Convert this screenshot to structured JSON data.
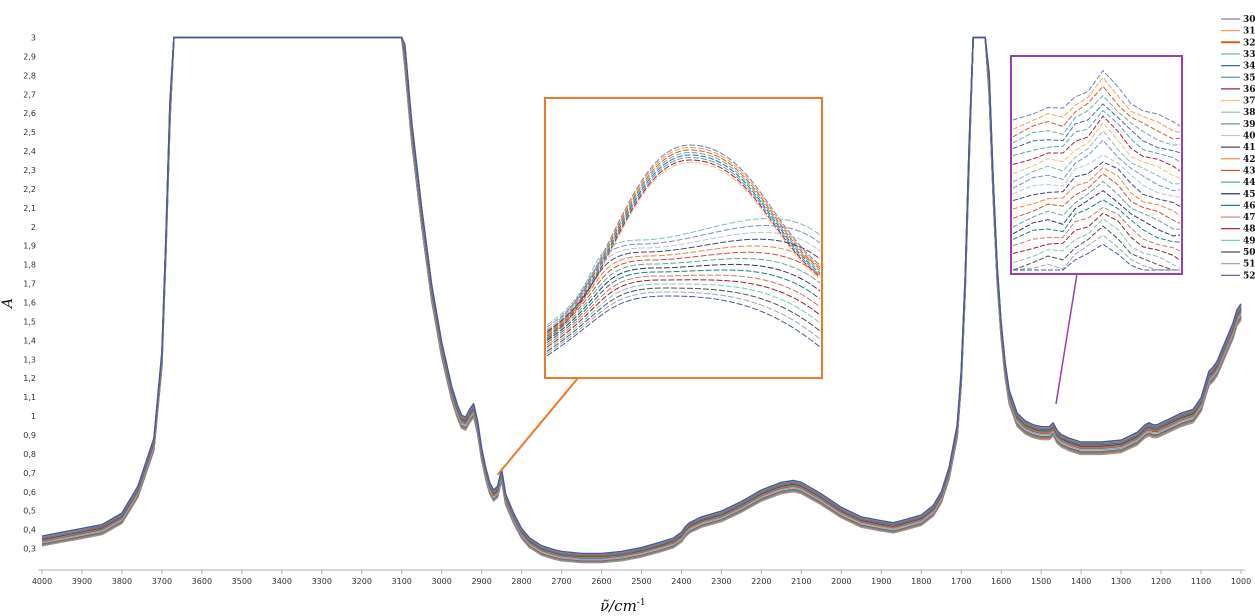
{
  "chart_data": {
    "type": "line",
    "xlabel": "ν̃/cm",
    "xlabel_sup": "-1",
    "ylabel": "A",
    "xlim": [
      4000,
      1000
    ],
    "ylim": [
      0.25,
      3.05
    ],
    "x_ticks": [
      4000,
      3900,
      3800,
      3700,
      3600,
      3500,
      3400,
      3300,
      3200,
      3100,
      3000,
      2900,
      2800,
      2700,
      2600,
      2500,
      2400,
      2300,
      2200,
      2100,
      2000,
      1900,
      1800,
      1700,
      1600,
      1500,
      1400,
      1300,
      1200,
      1100,
      1000
    ],
    "y_ticks": [
      "0,3",
      "0,4",
      "0,5",
      "0,6",
      "0,7",
      "0,8",
      "0,9",
      "1",
      "1,1",
      "1,2",
      "1,3",
      "1,4",
      "1,5",
      "1,6",
      "1,7",
      "1,8",
      "1,9",
      "2",
      "2,1",
      "2,2",
      "2,3",
      "2,4",
      "2,5",
      "2,6",
      "2,7",
      "2,8",
      "2,9",
      "3"
    ],
    "grid": false,
    "legend_position": "right",
    "series_names": [
      "30",
      "31",
      "32",
      "33",
      "34",
      "35",
      "36",
      "37",
      "38",
      "39",
      "40",
      "41",
      "42",
      "43",
      "44",
      "45",
      "46",
      "47",
      "48",
      "49",
      "50",
      "51",
      "52"
    ],
    "series_colors": [
      "#6f7fbf",
      "#f0a050",
      "#d06020",
      "#6ab0a0",
      "#3a6ea0",
      "#5aa0b0",
      "#a02040",
      "#f0c080",
      "#80c0b0",
      "#7a90c0",
      "#b8c8d0",
      "#404878",
      "#f08040",
      "#d05030",
      "#60a898",
      "#303860",
      "#208080",
      "#c08070",
      "#a01830",
      "#80c8b8",
      "#505050",
      "#a0a8b0",
      "#4858a0"
    ],
    "mean_spectrum": {
      "x": [
        4000,
        3950,
        3900,
        3850,
        3800,
        3760,
        3720,
        3700,
        3690,
        3680,
        3670,
        3660,
        3100,
        3092,
        3075,
        3050,
        3025,
        3000,
        2975,
        2960,
        2950,
        2940,
        2930,
        2920,
        2910,
        2900,
        2890,
        2880,
        2870,
        2860,
        2850,
        2840,
        2820,
        2800,
        2780,
        2750,
        2720,
        2700,
        2650,
        2600,
        2550,
        2500,
        2450,
        2420,
        2400,
        2390,
        2380,
        2370,
        2350,
        2300,
        2250,
        2200,
        2150,
        2120,
        2100,
        2050,
        2000,
        1950,
        1900,
        1870,
        1850,
        1800,
        1770,
        1750,
        1730,
        1710,
        1700,
        1690,
        1680,
        1670,
        1660,
        1640,
        1630,
        1620,
        1610,
        1600,
        1590,
        1580,
        1560,
        1540,
        1520,
        1500,
        1480,
        1470,
        1460,
        1450,
        1430,
        1400,
        1350,
        1300,
        1280,
        1260,
        1250,
        1240,
        1230,
        1220,
        1210,
        1200,
        1180,
        1150,
        1120,
        1100,
        1090,
        1080,
        1070,
        1060,
        1050,
        1040,
        1030,
        1020,
        1010,
        1000
      ],
      "y": [
        0.34,
        0.36,
        0.38,
        0.4,
        0.46,
        0.6,
        0.85,
        1.3,
        1.9,
        2.6,
        3.0,
        3.0,
        3.0,
        2.9,
        2.5,
        2.05,
        1.65,
        1.35,
        1.12,
        1.02,
        0.97,
        0.96,
        1.0,
        1.03,
        0.94,
        0.8,
        0.7,
        0.62,
        0.58,
        0.6,
        0.69,
        0.56,
        0.46,
        0.38,
        0.33,
        0.29,
        0.27,
        0.26,
        0.25,
        0.25,
        0.26,
        0.28,
        0.31,
        0.33,
        0.36,
        0.39,
        0.41,
        0.42,
        0.44,
        0.47,
        0.52,
        0.58,
        0.62,
        0.63,
        0.62,
        0.56,
        0.49,
        0.44,
        0.42,
        0.41,
        0.42,
        0.45,
        0.5,
        0.57,
        0.7,
        0.92,
        1.2,
        1.7,
        2.4,
        3.0,
        3.0,
        3.0,
        2.75,
        2.2,
        1.75,
        1.45,
        1.24,
        1.1,
        0.98,
        0.94,
        0.92,
        0.91,
        0.91,
        0.93,
        0.89,
        0.87,
        0.85,
        0.83,
        0.83,
        0.84,
        0.86,
        0.88,
        0.9,
        0.92,
        0.93,
        0.92,
        0.92,
        0.93,
        0.95,
        0.98,
        1.0,
        1.06,
        1.13,
        1.2,
        1.22,
        1.25,
        1.3,
        1.35,
        1.4,
        1.45,
        1.52,
        1.55
      ],
      "spread": 0.035
    },
    "inset_orange": {
      "anchor": [
        2860,
        0.69
      ],
      "description_lines": 20
    },
    "inset_purple": {
      "anchor": [
        1470,
        0.95
      ],
      "description_lines": 20
    }
  }
}
